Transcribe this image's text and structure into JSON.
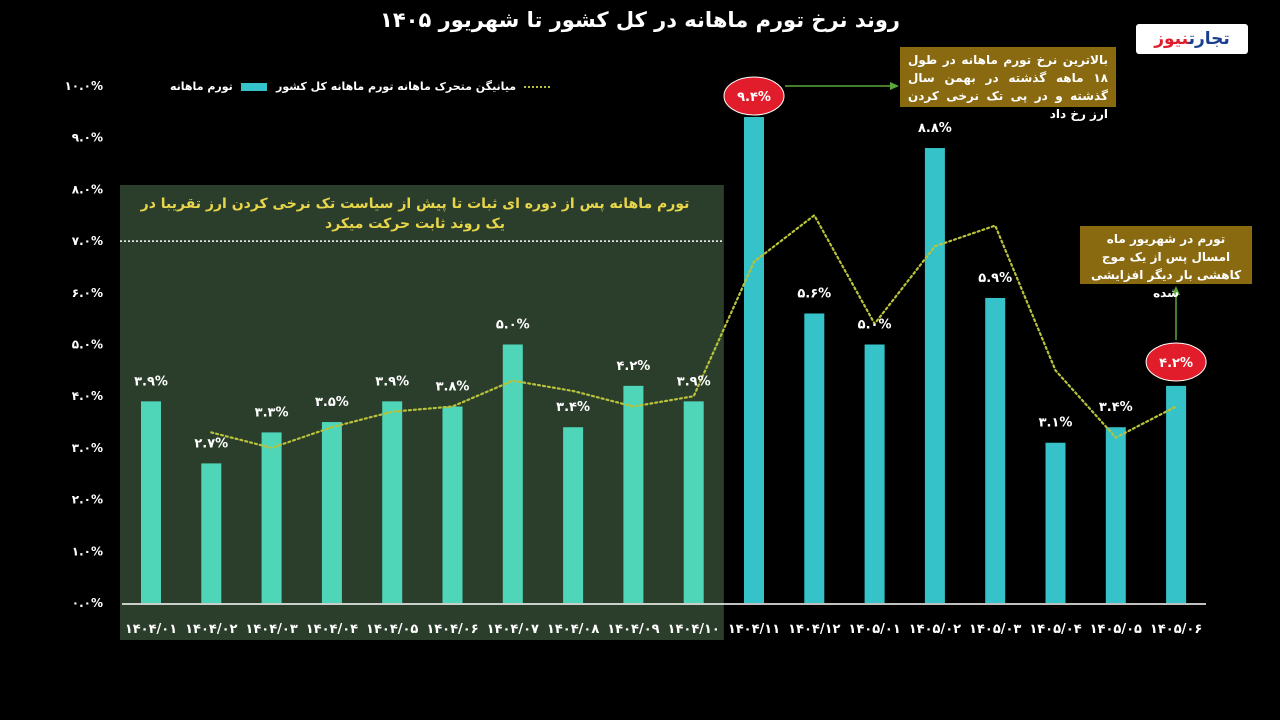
{
  "title": "روند نرخ تورم ماهانه در کل کشور تا شهریور ۱۴۰۵",
  "logo": {
    "part1": "تجارت",
    "part2": "نیوز"
  },
  "legend": {
    "bars": "تورم ماهانه",
    "line": "میانیگن متحرک ماهانه تورم ماهانه کل کشور"
  },
  "notes": {
    "highest": "بالاترین نرخ تورم ماهانه در طول ۱۸ ماهه گذشته در بهمن سال گذشته و در پی تک نرخی کردن ارز رخ داد",
    "latest": "تورم در شهریور ماه امسال پس از یک موج کاهشی بار دیگر افزایشی شده",
    "stable_period": "تورم ماهانه پس از دوره ای ثبات تا پیش از سیاست تک نرخی کردن ارز تقریبا در یک روند ثابت حرکت میکرد"
  },
  "colors": {
    "bar_early": "#4fd6b9",
    "bar_late": "#35c3c9",
    "moving_avg": "#b8c23a",
    "green_panel": "#2b3e2b",
    "highlight": "#e21d2b",
    "arrow": "#5aa83a",
    "axis": "#ffffff"
  },
  "chart_data": {
    "type": "bar",
    "title": "روند نرخ تورم ماهانه در کل کشور تا شهریور ۱۴۰۵",
    "categories": [
      "۱۴۰۴/۰۱",
      "۱۴۰۴/۰۲",
      "۱۴۰۴/۰۳",
      "۱۴۰۴/۰۴",
      "۱۴۰۴/۰۵",
      "۱۴۰۴/۰۶",
      "۱۴۰۴/۰۷",
      "۱۴۰۴/۰۸",
      "۱۴۰۴/۰۹",
      "۱۴۰۴/۱۰",
      "۱۴۰۴/۱۱",
      "۱۴۰۴/۱۲",
      "۱۴۰۵/۰۱",
      "۱۴۰۵/۰۲",
      "۱۴۰۵/۰۳",
      "۱۴۰۵/۰۴",
      "۱۴۰۵/۰۵",
      "۱۴۰۵/۰۶"
    ],
    "series": [
      {
        "name": "تورم ماهانه",
        "type": "bar",
        "values": [
          3.9,
          2.7,
          3.3,
          3.5,
          3.9,
          3.8,
          5.0,
          3.4,
          4.2,
          3.9,
          9.4,
          5.6,
          5.0,
          8.8,
          5.9,
          3.1,
          3.4,
          4.2
        ],
        "labels": [
          "۳.۹%",
          "۲.۷%",
          "۳.۳%",
          "۳.۵%",
          "۳.۹%",
          "۳.۸%",
          "۵.۰%",
          "۳.۴%",
          "۴.۲%",
          "۳.۹%",
          "۹.۴%",
          "۵.۶%",
          "۵.۰%",
          "۸.۸%",
          "۵.۹%",
          "۳.۱%",
          "۳.۴%",
          "۴.۲%"
        ]
      },
      {
        "name": "میانیگن متحرک ماهانه تورم ماهانه کل کشور",
        "type": "line",
        "style": "dotted",
        "values": [
          null,
          3.3,
          3.0,
          3.4,
          3.7,
          3.8,
          4.3,
          4.1,
          3.8,
          4.0,
          6.6,
          7.5,
          5.4,
          6.9,
          7.3,
          4.5,
          3.2,
          3.8
        ]
      }
    ],
    "ylim": [
      0,
      10
    ],
    "yticks": [
      "۰.۰%",
      "۱.۰%",
      "۲.۰%",
      "۳.۰%",
      "۴.۰%",
      "۵.۰%",
      "۶.۰%",
      "۷.۰%",
      "۸.۰%",
      "۹.۰%",
      "۱۰.۰%"
    ],
    "reference_line": 7.0,
    "highlighted_labels": [
      10,
      17
    ],
    "grid": false,
    "legend_position": "top-left"
  }
}
